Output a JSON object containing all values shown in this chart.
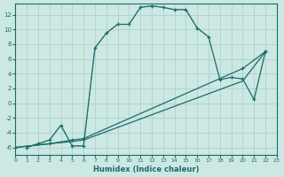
{
  "xlabel": "Humidex (Indice chaleur)",
  "xlim": [
    0,
    23
  ],
  "ylim": [
    -7,
    13.5
  ],
  "xticks": [
    0,
    1,
    2,
    3,
    4,
    5,
    6,
    7,
    8,
    9,
    10,
    11,
    12,
    13,
    14,
    15,
    16,
    17,
    18,
    19,
    20,
    21,
    22,
    23
  ],
  "yticks": [
    -6,
    -4,
    -2,
    0,
    2,
    4,
    6,
    8,
    10,
    12
  ],
  "bg_color": "#cce8e2",
  "grid_color": "#aaccca",
  "line_color": "#1a6b6b",
  "arch_x": [
    1,
    2,
    3,
    4,
    5,
    6,
    7,
    8,
    9,
    10,
    11,
    12,
    13,
    14,
    15,
    16,
    17,
    18,
    19,
    20,
    21,
    22
  ],
  "arch_y": [
    -6,
    -5.5,
    -5,
    -3,
    -5.8,
    -5.8,
    7.5,
    9.5,
    10.7,
    10.7,
    13.0,
    13.2,
    13.0,
    12.7,
    12.7,
    10.2,
    9.0,
    3.2,
    3.5,
    3.3,
    0.5,
    7.0
  ],
  "line3_x": [
    0,
    3,
    5,
    6,
    20,
    22
  ],
  "line3_y": [
    -6,
    -5.5,
    -5.0,
    -4.8,
    4.7,
    7.0
  ],
  "line4_x": [
    0,
    3,
    5,
    6,
    20,
    22
  ],
  "line4_y": [
    -6,
    -5.5,
    -5.2,
    -5.0,
    3.0,
    7.0
  ],
  "dotted_x": [
    1,
    2,
    3,
    4,
    5,
    6,
    7,
    8,
    9,
    10,
    11,
    12,
    13,
    14,
    15,
    16,
    17
  ],
  "dotted_y": [
    -6,
    -5.5,
    -5,
    -3,
    -5.8,
    -5.8,
    7.5,
    9.5,
    10.7,
    10.7,
    13.0,
    13.2,
    13.0,
    12.7,
    12.7,
    10.2,
    9.0
  ]
}
